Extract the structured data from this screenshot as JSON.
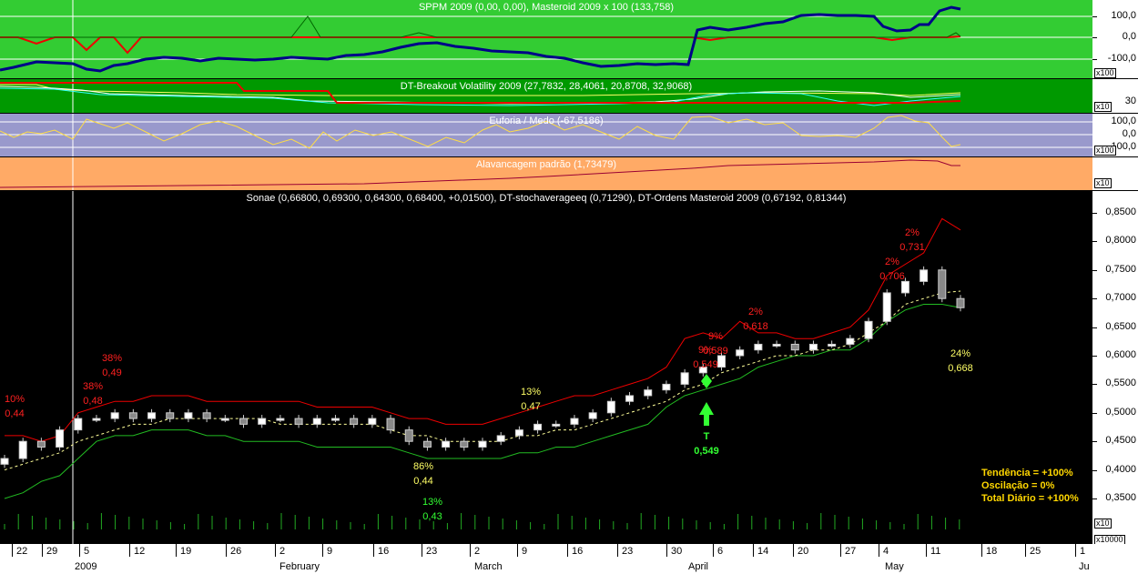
{
  "panels": {
    "sppm": {
      "title": "SPPM 2009 (0,00, 0,00), Masteroid 2009 x 100 (133,758)",
      "ticks": [
        "100,0",
        "0,0",
        "-100,0"
      ],
      "unit": "x100",
      "bg": "#33cc33"
    },
    "breakout": {
      "title": "DT-Breakout Volatility 2009 (27,7832, 28,4061, 20,8708, 32,9068)",
      "ticks": [
        "30"
      ],
      "unit": "x10",
      "bg": "#009900"
    },
    "euforia": {
      "title": "Euforia / Medo (-67,5186)",
      "ticks": [
        "100,0",
        "0,0",
        "-100,0"
      ],
      "unit": "x100",
      "bg": "#9999cc"
    },
    "alav": {
      "title": "Alavancagem padrão (1,73479)",
      "unit": "x10",
      "bg": "#ffaa66"
    }
  },
  "main": {
    "title": "Sonae (0,66800, 0,69300, 0,64300, 0,68400, +0,01500), DT-stochaverageeq (0,71290), DT-Ordens Masteroid 2009 (0,67192, 0,81344)",
    "yticks": [
      "0,8500",
      "0,8000",
      "0,7500",
      "0,7000",
      "0,6500",
      "0,6000",
      "0,5500",
      "0,5000",
      "0,4500",
      "0,4000",
      "0,3500"
    ],
    "vol_unit_1": "x10",
    "vol_unit_2": "x10000"
  },
  "indicators": {
    "tendencia": "Tendência = +100%",
    "oscilacao": "Oscilação = 0%",
    "total": "Total Diário = +100%"
  },
  "xaxis": {
    "days": [
      "22",
      "29",
      "5",
      "12",
      "19",
      "26",
      "2",
      "9",
      "16",
      "23",
      "2",
      "9",
      "16",
      "23",
      "30",
      "6",
      "14",
      "20",
      "27",
      "4",
      "11",
      "18",
      "25",
      "1"
    ],
    "months": [
      "2009",
      "February",
      "March",
      "April",
      "May",
      "Ju"
    ]
  },
  "chart_data": {
    "type": "candlestick",
    "title": "Sonae (0,66800, 0,69300, 0,64300, 0,68400, +0,01500), DT-stochaverageeq (0,71290), DT-Ordens Masteroid 2009 (0,67192, 0,81344)",
    "ylim": [
      0.33,
      0.86
    ],
    "x": [
      "2008-12-17",
      "2008-12-19",
      "2008-12-23",
      "2008-12-29",
      "2009-01-02",
      "2009-01-06",
      "2009-01-08",
      "2009-01-12",
      "2009-01-14",
      "2009-01-16",
      "2009-01-20",
      "2009-01-22",
      "2009-01-26",
      "2009-01-28",
      "2009-01-30",
      "2009-02-03",
      "2009-02-05",
      "2009-02-09",
      "2009-02-11",
      "2009-02-13",
      "2009-02-17",
      "2009-02-19",
      "2009-02-23",
      "2009-02-25",
      "2009-02-27",
      "2009-03-03",
      "2009-03-05",
      "2009-03-09",
      "2009-03-11",
      "2009-03-13",
      "2009-03-17",
      "2009-03-19",
      "2009-03-23",
      "2009-03-25",
      "2009-03-27",
      "2009-03-31",
      "2009-04-02",
      "2009-04-03",
      "2009-04-06",
      "2009-04-08",
      "2009-04-14",
      "2009-04-16",
      "2009-04-20",
      "2009-04-22",
      "2009-04-24",
      "2009-04-28",
      "2009-04-30",
      "2009-05-04",
      "2009-05-06",
      "2009-05-08",
      "2009-05-11",
      "2009-05-13",
      "2009-05-14"
    ],
    "close": [
      0.42,
      0.45,
      0.44,
      0.47,
      0.49,
      0.49,
      0.5,
      0.49,
      0.5,
      0.49,
      0.5,
      0.49,
      0.49,
      0.48,
      0.49,
      0.49,
      0.48,
      0.49,
      0.49,
      0.48,
      0.49,
      0.47,
      0.45,
      0.44,
      0.45,
      0.44,
      0.45,
      0.46,
      0.47,
      0.48,
      0.48,
      0.49,
      0.5,
      0.52,
      0.53,
      0.54,
      0.55,
      0.57,
      0.58,
      0.6,
      0.61,
      0.62,
      0.62,
      0.61,
      0.62,
      0.62,
      0.63,
      0.66,
      0.71,
      0.73,
      0.75,
      0.7,
      0.684
    ],
    "dashed_avg": [
      0.4,
      0.41,
      0.42,
      0.43,
      0.45,
      0.46,
      0.47,
      0.48,
      0.48,
      0.49,
      0.49,
      0.49,
      0.49,
      0.49,
      0.49,
      0.48,
      0.48,
      0.48,
      0.48,
      0.48,
      0.48,
      0.47,
      0.46,
      0.46,
      0.45,
      0.45,
      0.45,
      0.45,
      0.46,
      0.46,
      0.47,
      0.47,
      0.48,
      0.49,
      0.5,
      0.51,
      0.52,
      0.54,
      0.55,
      0.57,
      0.58,
      0.59,
      0.6,
      0.6,
      0.61,
      0.61,
      0.62,
      0.64,
      0.66,
      0.69,
      0.7,
      0.71,
      0.713
    ],
    "upper_band": [
      0.46,
      0.46,
      0.45,
      0.46,
      0.5,
      0.51,
      0.52,
      0.52,
      0.53,
      0.53,
      0.53,
      0.52,
      0.52,
      0.52,
      0.52,
      0.52,
      0.52,
      0.51,
      0.51,
      0.51,
      0.51,
      0.5,
      0.49,
      0.49,
      0.48,
      0.48,
      0.48,
      0.49,
      0.5,
      0.51,
      0.52,
      0.53,
      0.53,
      0.54,
      0.55,
      0.56,
      0.58,
      0.63,
      0.64,
      0.63,
      0.66,
      0.64,
      0.64,
      0.63,
      0.63,
      0.64,
      0.65,
      0.68,
      0.74,
      0.76,
      0.78,
      0.84,
      0.82
    ],
    "lower_band": [
      0.35,
      0.36,
      0.38,
      0.39,
      0.42,
      0.45,
      0.46,
      0.46,
      0.47,
      0.47,
      0.47,
      0.46,
      0.46,
      0.45,
      0.45,
      0.45,
      0.45,
      0.44,
      0.44,
      0.44,
      0.44,
      0.44,
      0.43,
      0.42,
      0.42,
      0.42,
      0.42,
      0.42,
      0.43,
      0.43,
      0.44,
      0.44,
      0.45,
      0.46,
      0.47,
      0.48,
      0.51,
      0.53,
      0.54,
      0.55,
      0.56,
      0.58,
      0.59,
      0.6,
      0.6,
      0.61,
      0.61,
      0.63,
      0.66,
      0.68,
      0.69,
      0.69,
      0.684
    ],
    "annotations": [
      {
        "pct": "10%",
        "val": "0,44",
        "color": "#ff2020"
      },
      {
        "pct": "38%",
        "val": "0,48",
        "color": "#ff2020"
      },
      {
        "pct": "38%",
        "val": "0,49",
        "color": "#ff2020"
      },
      {
        "pct": "86%",
        "val": "0,44",
        "color": "#ffff66"
      },
      {
        "pct": "13%",
        "val": "0,43",
        "color": "#33ff33"
      },
      {
        "pct": "13%",
        "val": "0,47",
        "color": "#ffff66"
      },
      {
        "pct": "9%",
        "val": "0,549",
        "color": "#ff2020"
      },
      {
        "pct": "9%",
        "val": "0,589",
        "color": "#ff2020"
      },
      {
        "pct": "2%",
        "val": "0,618",
        "color": "#ff2020"
      },
      {
        "pct": "2%",
        "val": "0,706",
        "color": "#ff2020"
      },
      {
        "pct": "2%",
        "val": "0,731",
        "color": "#ff2020"
      },
      {
        "pct": "24%",
        "val": "0,668",
        "color": "#ffff66"
      }
    ],
    "signal": {
      "label": "T",
      "value": "0,549",
      "color": "#33ff33"
    }
  }
}
